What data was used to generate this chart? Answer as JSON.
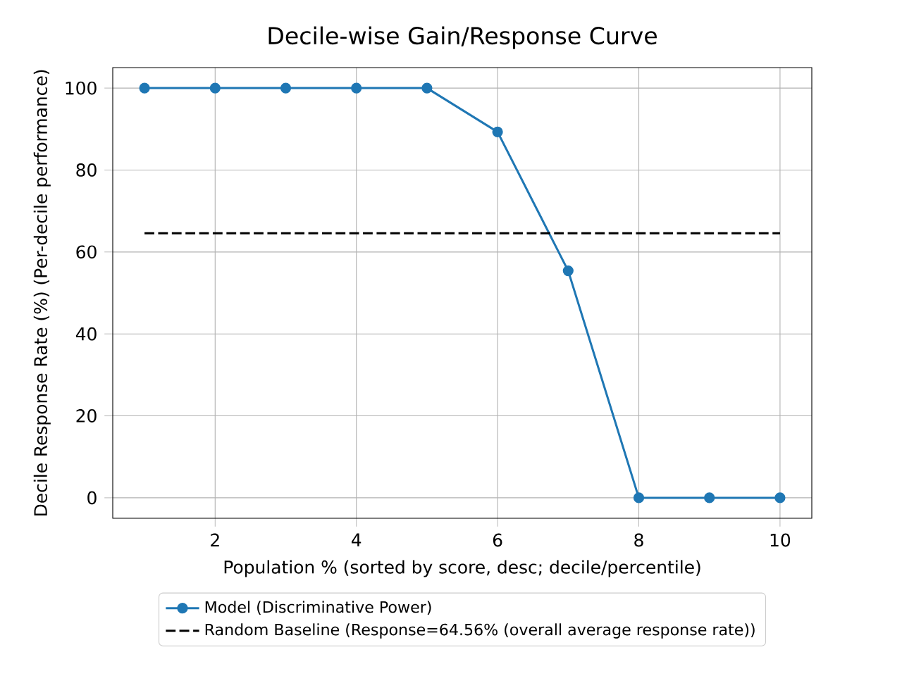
{
  "chart_data": {
    "type": "line",
    "title": "Decile-wise Gain/Response Curve",
    "xlabel": "Population % (sorted by score, desc; decile/percentile)",
    "ylabel": "Decile Response Rate (%) (Per-decile performance)",
    "x": [
      1,
      2,
      3,
      4,
      5,
      6,
      7,
      8,
      9,
      10
    ],
    "series": [
      {
        "name": "Model (Discriminative Power)",
        "color": "#1f77b4",
        "marker": "circle",
        "line_style": "solid",
        "values": [
          100,
          100,
          100,
          100,
          100,
          89.3,
          55.4,
          0,
          0,
          0
        ]
      },
      {
        "name": "Random Baseline (Response=64.56% (overall average response rate))",
        "color": "#000000",
        "marker": "none",
        "line_style": "dashed",
        "values": [
          64.56,
          64.56,
          64.56,
          64.56,
          64.56,
          64.56,
          64.56,
          64.56,
          64.56,
          64.56
        ]
      }
    ],
    "xlim": [
      0.55,
      10.45
    ],
    "ylim": [
      -5,
      105
    ],
    "xticks": [
      2,
      4,
      6,
      8,
      10
    ],
    "yticks": [
      0,
      20,
      40,
      60,
      80,
      100
    ],
    "grid": true,
    "legend": "bottom"
  }
}
